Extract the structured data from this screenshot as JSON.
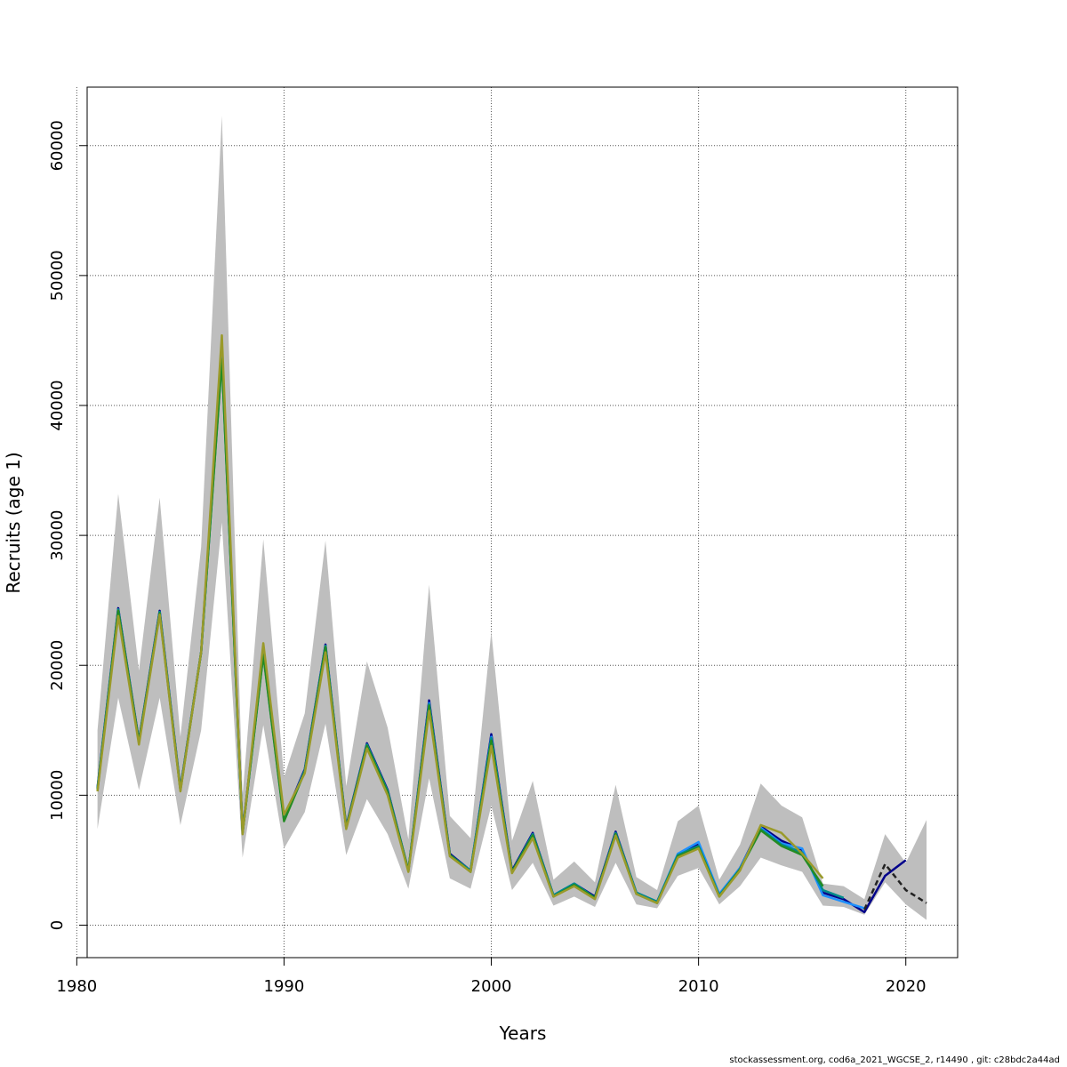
{
  "chart_data": {
    "type": "line",
    "title": "",
    "xlabel": "Years",
    "ylabel": "Recruits (age 1)",
    "xlim": [
      1980.5,
      2022.5
    ],
    "ylim": [
      -2500,
      64500
    ],
    "xticks": [
      1980,
      1990,
      2000,
      2010,
      2020
    ],
    "yticks": [
      0,
      10000,
      20000,
      30000,
      40000,
      50000,
      60000
    ],
    "grid": true,
    "legend": "none",
    "confidence_band": {
      "color": "#bebebe",
      "x": [
        1981,
        1982,
        1983,
        1984,
        1985,
        1986,
        1987,
        1988,
        1989,
        1990,
        1991,
        1992,
        1993,
        1994,
        1995,
        1996,
        1997,
        1998,
        1999,
        2000,
        2001,
        2002,
        2003,
        2004,
        2005,
        2006,
        2007,
        2008,
        2009,
        2010,
        2011,
        2012,
        2013,
        2014,
        2015,
        2016,
        2017,
        2018,
        2019,
        2020,
        2021
      ],
      "lower": [
        7400,
        17500,
        10400,
        17500,
        7700,
        15000,
        31000,
        5200,
        15400,
        5900,
        8700,
        15500,
        5400,
        9700,
        7000,
        2800,
        11300,
        3600,
        2800,
        9200,
        2700,
        4800,
        1500,
        2200,
        1400,
        4800,
        1600,
        1300,
        3800,
        4400,
        1600,
        3000,
        5200,
        4600,
        4100,
        1500,
        1400,
        800,
        3300,
        1600,
        400
      ],
      "upper": [
        15000,
        33200,
        19600,
        32900,
        14500,
        29100,
        62300,
        10000,
        29700,
        11400,
        16300,
        29600,
        10700,
        20300,
        15200,
        6600,
        26200,
        8400,
        6700,
        22600,
        6500,
        11100,
        3500,
        4900,
        3300,
        10800,
        3700,
        2700,
        8000,
        9200,
        3500,
        6200,
        10900,
        9200,
        8300,
        3200,
        3000,
        2000,
        7000,
        4800,
        8100
      ]
    },
    "series": [
      {
        "color": "#00008b",
        "x": [
          1981,
          1982,
          1983,
          1984,
          1985,
          1986,
          1987,
          1988,
          1989,
          1990,
          1991,
          1992,
          1993,
          1994,
          1995,
          1996,
          1997,
          1998,
          1999,
          2000,
          2001,
          2002,
          2003,
          2004,
          2005,
          2006,
          2007,
          2008,
          2009,
          2010,
          2011,
          2012,
          2013,
          2014,
          2015,
          2016,
          2017,
          2018,
          2019,
          2020
        ],
        "values": [
          10600,
          24400,
          14200,
          24200,
          10500,
          21000,
          44000,
          7200,
          21000,
          8200,
          12000,
          21600,
          7600,
          14000,
          10400,
          4200,
          17300,
          5500,
          4200,
          14700,
          4200,
          7100,
          2300,
          3200,
          2200,
          7200,
          2500,
          1800,
          5400,
          6200,
          2300,
          4400,
          7600,
          6500,
          5800,
          2500,
          2000,
          1000,
          3800,
          5000
        ],
        "dash": false
      },
      {
        "color": "#1e90ff",
        "x": [
          1981,
          1982,
          1983,
          1984,
          1985,
          1986,
          1987,
          1988,
          1989,
          1990,
          1991,
          1992,
          1993,
          1994,
          1995,
          1996,
          1997,
          1998,
          1999,
          2000,
          2001,
          2002,
          2003,
          2004,
          2005,
          2006,
          2007,
          2008,
          2009,
          2010,
          2011,
          2012,
          2013,
          2014,
          2015,
          2016,
          2017,
          2018
        ],
        "values": [
          10500,
          24300,
          14100,
          24100,
          10400,
          21000,
          43800,
          7100,
          20900,
          8100,
          11900,
          21500,
          7500,
          13900,
          10300,
          4200,
          17100,
          5400,
          4200,
          14500,
          4100,
          7000,
          2300,
          3200,
          2100,
          7100,
          2500,
          1800,
          5500,
          6400,
          2400,
          4400,
          7500,
          6300,
          5900,
          2300,
          1800,
          1300
        ],
        "dash": false
      },
      {
        "color": "#008b8b",
        "x": [
          1981,
          1982,
          1983,
          1984,
          1985,
          1986,
          1987,
          1988,
          1989,
          1990,
          1991,
          1992,
          1993,
          1994,
          1995,
          1996,
          1997,
          1998,
          1999,
          2000,
          2001,
          2002,
          2003,
          2004,
          2005,
          2006,
          2007,
          2008,
          2009,
          2010,
          2011,
          2012,
          2013,
          2014,
          2015,
          2016,
          2017
        ],
        "values": [
          10500,
          24300,
          14100,
          24100,
          10400,
          21000,
          43600,
          7100,
          20900,
          8100,
          11900,
          21500,
          7500,
          13900,
          10300,
          4200,
          17000,
          5400,
          4200,
          14400,
          4100,
          7000,
          2300,
          3200,
          2100,
          7100,
          2500,
          1800,
          5400,
          6100,
          2300,
          4300,
          7400,
          6200,
          5600,
          2700,
          2100
        ],
        "dash": false
      },
      {
        "color": "#228b22",
        "x": [
          1981,
          1982,
          1983,
          1984,
          1985,
          1986,
          1987,
          1988,
          1989,
          1990,
          1991,
          1992,
          1993,
          1994,
          1995,
          1996,
          1997,
          1998,
          1999,
          2000,
          2001,
          2002,
          2003,
          2004,
          2005,
          2006,
          2007,
          2008,
          2009,
          2010,
          2011,
          2012,
          2013,
          2014,
          2015,
          2016
        ],
        "values": [
          10400,
          24200,
          14100,
          24000,
          10400,
          21000,
          43500,
          7100,
          20800,
          8000,
          11800,
          21400,
          7500,
          13800,
          10200,
          4200,
          16900,
          5400,
          4100,
          14200,
          4100,
          6900,
          2200,
          3100,
          2100,
          7000,
          2400,
          1700,
          5300,
          6000,
          2200,
          4300,
          7300,
          6100,
          5400,
          3000
        ],
        "dash": false
      },
      {
        "color": "#9a9a2a",
        "x": [
          1981,
          1982,
          1983,
          1984,
          1985,
          1986,
          1987,
          1988,
          1989,
          1990,
          1991,
          1992,
          1993,
          1994,
          1995,
          1996,
          1997,
          1998,
          1999,
          2000,
          2001,
          2002,
          2003,
          2004,
          2005,
          2006,
          2007,
          2008,
          2009,
          2010,
          2011,
          2012,
          2013,
          2014,
          2015,
          2016
        ],
        "values": [
          10300,
          23800,
          13900,
          23900,
          10300,
          21000,
          45400,
          7000,
          21700,
          8500,
          11700,
          21000,
          7400,
          13600,
          10000,
          4100,
          16500,
          5300,
          4100,
          13800,
          4000,
          6700,
          2200,
          3000,
          2000,
          6900,
          2400,
          1700,
          5200,
          5900,
          2200,
          4200,
          7700,
          7100,
          5500,
          3600
        ],
        "dash": false
      },
      {
        "color": "#222222",
        "x": [
          2018,
          2019,
          2020,
          2021
        ],
        "values": [
          1200,
          4700,
          2700,
          1700
        ],
        "dash": true
      }
    ]
  },
  "footer": "stockassessment.org, cod6a_2021_WGCSE_2, r14490 , git: c28bdc2a44ad"
}
